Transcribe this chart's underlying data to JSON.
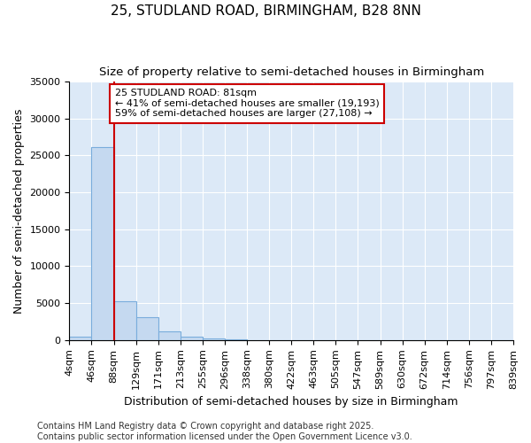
{
  "title": "25, STUDLAND ROAD, BIRMINGHAM, B28 8NN",
  "subtitle": "Size of property relative to semi-detached houses in Birmingham",
  "xlabel": "Distribution of semi-detached houses by size in Birmingham",
  "ylabel": "Number of semi-detached properties",
  "bin_labels": [
    "4sqm",
    "46sqm",
    "88sqm",
    "129sqm",
    "171sqm",
    "213sqm",
    "255sqm",
    "296sqm",
    "338sqm",
    "380sqm",
    "422sqm",
    "463sqm",
    "505sqm",
    "547sqm",
    "589sqm",
    "630sqm",
    "672sqm",
    "714sqm",
    "756sqm",
    "797sqm",
    "839sqm"
  ],
  "bar_heights": [
    500,
    26100,
    5200,
    3100,
    1200,
    500,
    200,
    50,
    20,
    10,
    5,
    3,
    2,
    1,
    1,
    0,
    0,
    0,
    0,
    0
  ],
  "bar_color": "#c5d9f0",
  "bar_edge_color": "#7aaddc",
  "property_size_sqm": 81,
  "pct_smaller": 41,
  "n_smaller": 19193,
  "pct_larger": 59,
  "n_larger": 27108,
  "annotation_line1": "25 STUDLAND ROAD: 81sqm",
  "annotation_line2": "← 41% of semi-detached houses are smaller (19,193)",
  "annotation_line3": "59% of semi-detached houses are larger (27,108) →",
  "ylim": [
    0,
    35000
  ],
  "yticks": [
    0,
    5000,
    10000,
    15000,
    20000,
    25000,
    30000,
    35000
  ],
  "vline_color": "#cc0000",
  "annotation_box_facecolor": "#ffffff",
  "annotation_box_edgecolor": "#cc0000",
  "footer_text": "Contains HM Land Registry data © Crown copyright and database right 2025.\nContains public sector information licensed under the Open Government Licence v3.0.",
  "bg_color": "#ffffff",
  "plot_bg_color": "#dce9f7",
  "title_fontsize": 11,
  "subtitle_fontsize": 9.5,
  "axis_label_fontsize": 9,
  "tick_fontsize": 8,
  "annotation_fontsize": 8,
  "footer_fontsize": 7
}
